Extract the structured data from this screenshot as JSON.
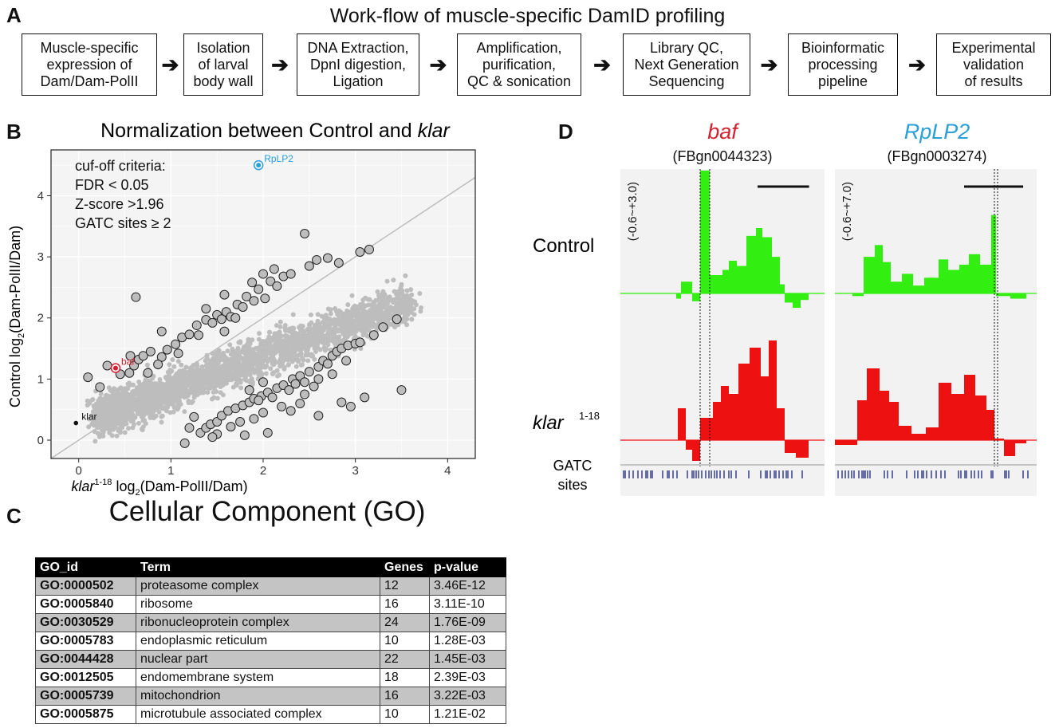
{
  "panels": {
    "a": "A",
    "b": "B",
    "c": "C",
    "d": "D"
  },
  "workflow": {
    "title": "Work-flow of muscle-specific DamID profiling",
    "arrow": "➔",
    "steps": [
      "Muscle-specific\nexpression of\nDam/Dam-PolII",
      "Isolation\nof larval\nbody wall",
      "DNA Extraction,\nDpnI digestion,\nLigation",
      "Amplification,\npurification,\nQC & sonication",
      "Library QC,\nNext Generation\nSequencing",
      "Bioinformatic\nprocessing\npipeline",
      "Experimental\nvalidation\nof results"
    ]
  },
  "scatter": {
    "title_plain": "Normalization between Control and ",
    "title_italic": "klar",
    "criteria": [
      "cuf-off criteria:",
      "FDR < 0.05",
      "Z-score >1.96",
      "GATC sites ≥ 2"
    ],
    "ylabel": {
      "prefix": "Control log",
      "sub": "2",
      "suffix": "(Dam-PolII/Dam)"
    },
    "xlabel": {
      "italic": "klar",
      "sup": "1-18",
      "mid": " log",
      "sub": "2",
      "suffix": "(Dam-PolII/Dam)"
    },
    "colors": {
      "background_points": "#bdbdbd",
      "baf": "#d42030",
      "RpLP2": "#2a9fd8",
      "klar": "#111111",
      "panel": "#f4f4f4",
      "grid": "#ffffff"
    }
  },
  "chart_data": {
    "type": "scatter",
    "xlim": [
      -0.3,
      4.3
    ],
    "ylim": [
      -0.3,
      4.75
    ],
    "xticks": [
      "0",
      "1",
      "2",
      "3",
      "4"
    ],
    "yticks": [
      "0",
      "1",
      "2",
      "3",
      "4"
    ],
    "grid": true,
    "diagonal_line": {
      "x": [
        -0.3,
        4.3
      ],
      "y": [
        -0.3,
        4.3
      ]
    },
    "labeled_points": [
      {
        "label": "RpLP2",
        "x": 1.95,
        "y": 4.5
      },
      {
        "label": "baf",
        "x": 0.4,
        "y": 1.18
      },
      {
        "label": "klar",
        "x": -0.03,
        "y": 0.28
      }
    ],
    "significant_points": [
      {
        "x": 0.1,
        "y": 1.03
      },
      {
        "x": 0.23,
        "y": 0.87
      },
      {
        "x": 0.31,
        "y": 1.22
      },
      {
        "x": 0.45,
        "y": 1.08
      },
      {
        "x": 0.55,
        "y": 1.1
      },
      {
        "x": 0.6,
        "y": 1.22
      },
      {
        "x": 0.65,
        "y": 1.32
      },
      {
        "x": 0.7,
        "y": 1.38
      },
      {
        "x": 0.62,
        "y": 2.34
      },
      {
        "x": 0.75,
        "y": 1.1
      },
      {
        "x": 0.78,
        "y": 1.45
      },
      {
        "x": 0.9,
        "y": 1.78
      },
      {
        "x": 0.9,
        "y": 1.36
      },
      {
        "x": 0.96,
        "y": 1.48
      },
      {
        "x": 1.05,
        "y": 1.57
      },
      {
        "x": 1.12,
        "y": 1.68
      },
      {
        "x": 1.2,
        "y": 1.73
      },
      {
        "x": 1.28,
        "y": 1.88
      },
      {
        "x": 1.3,
        "y": 1.72
      },
      {
        "x": 1.38,
        "y": 1.97
      },
      {
        "x": 1.45,
        "y": 1.92
      },
      {
        "x": 1.5,
        "y": 2.05
      },
      {
        "x": 1.55,
        "y": 1.98
      },
      {
        "x": 1.6,
        "y": 2.1
      },
      {
        "x": 1.65,
        "y": 2.02
      },
      {
        "x": 1.72,
        "y": 2.22
      },
      {
        "x": 1.78,
        "y": 2.18
      },
      {
        "x": 1.82,
        "y": 2.35
      },
      {
        "x": 1.88,
        "y": 2.58
      },
      {
        "x": 1.9,
        "y": 2.28
      },
      {
        "x": 1.95,
        "y": 2.47
      },
      {
        "x": 2.02,
        "y": 2.32
      },
      {
        "x": 2.08,
        "y": 2.6
      },
      {
        "x": 2.15,
        "y": 2.52
      },
      {
        "x": 2.22,
        "y": 2.68
      },
      {
        "x": 2.3,
        "y": 2.72
      },
      {
        "x": 2.45,
        "y": 3.38
      },
      {
        "x": 2.5,
        "y": 2.85
      },
      {
        "x": 2.58,
        "y": 2.95
      },
      {
        "x": 2.7,
        "y": 2.98
      },
      {
        "x": 2.82,
        "y": 2.9
      },
      {
        "x": 3.05,
        "y": 3.08
      },
      {
        "x": 3.15,
        "y": 3.12
      },
      {
        "x": 1.7,
        "y": 2.0
      },
      {
        "x": 1.58,
        "y": 2.38
      },
      {
        "x": 2.0,
        "y": 2.72
      },
      {
        "x": 2.12,
        "y": 2.8
      },
      {
        "x": 1.38,
        "y": 2.15
      },
      {
        "x": 1.08,
        "y": 1.42
      },
      {
        "x": 0.86,
        "y": 1.24
      },
      {
        "x": 0.56,
        "y": 1.38
      },
      {
        "x": 1.58,
        "y": 1.78
      },
      {
        "x": 1.32,
        "y": 0.12
      },
      {
        "x": 1.38,
        "y": 0.2
      },
      {
        "x": 1.43,
        "y": 0.26
      },
      {
        "x": 1.5,
        "y": 0.3
      },
      {
        "x": 1.55,
        "y": 0.4
      },
      {
        "x": 1.62,
        "y": 0.48
      },
      {
        "x": 1.7,
        "y": 0.52
      },
      {
        "x": 1.78,
        "y": 0.57
      },
      {
        "x": 1.85,
        "y": 0.62
      },
      {
        "x": 1.9,
        "y": 0.68
      },
      {
        "x": 1.98,
        "y": 0.72
      },
      {
        "x": 2.05,
        "y": 0.78
      },
      {
        "x": 2.1,
        "y": 0.7
      },
      {
        "x": 2.15,
        "y": 0.85
      },
      {
        "x": 2.22,
        "y": 0.9
      },
      {
        "x": 2.28,
        "y": 0.82
      },
      {
        "x": 2.32,
        "y": 1.0
      },
      {
        "x": 2.4,
        "y": 1.05
      },
      {
        "x": 2.45,
        "y": 0.95
      },
      {
        "x": 2.5,
        "y": 1.12
      },
      {
        "x": 2.55,
        "y": 0.88
      },
      {
        "x": 2.6,
        "y": 1.2
      },
      {
        "x": 2.65,
        "y": 1.3
      },
      {
        "x": 2.7,
        "y": 1.25
      },
      {
        "x": 2.75,
        "y": 1.38
      },
      {
        "x": 2.8,
        "y": 1.45
      },
      {
        "x": 2.85,
        "y": 1.5
      },
      {
        "x": 2.92,
        "y": 1.55
      },
      {
        "x": 3.0,
        "y": 1.58
      },
      {
        "x": 3.05,
        "y": 1.6
      },
      {
        "x": 3.3,
        "y": 1.85
      },
      {
        "x": 3.45,
        "y": 1.98
      },
      {
        "x": 3.5,
        "y": 0.82
      },
      {
        "x": 3.1,
        "y": 0.7
      },
      {
        "x": 2.85,
        "y": 0.62
      },
      {
        "x": 2.95,
        "y": 0.55
      },
      {
        "x": 2.6,
        "y": 0.4
      },
      {
        "x": 2.3,
        "y": 0.48
      },
      {
        "x": 2.2,
        "y": 0.55
      },
      {
        "x": 2.4,
        "y": 0.6
      },
      {
        "x": 2.0,
        "y": 0.45
      },
      {
        "x": 1.9,
        "y": 0.35
      },
      {
        "x": 1.75,
        "y": 0.3
      },
      {
        "x": 1.65,
        "y": 0.22
      },
      {
        "x": 1.5,
        "y": 0.1
      },
      {
        "x": 1.45,
        "y": 0.05
      },
      {
        "x": 1.15,
        "y": -0.05
      },
      {
        "x": 1.2,
        "y": 0.2
      },
      {
        "x": 1.8,
        "y": 0.08
      },
      {
        "x": 2.05,
        "y": 0.12
      },
      {
        "x": 2.6,
        "y": 1.0
      },
      {
        "x": 2.75,
        "y": 1.08
      },
      {
        "x": 2.9,
        "y": 1.3
      },
      {
        "x": 2.45,
        "y": 0.75
      },
      {
        "x": 2.35,
        "y": 0.92
      },
      {
        "x": 1.95,
        "y": 0.65
      },
      {
        "x": 2.0,
        "y": 0.95
      },
      {
        "x": 1.85,
        "y": 0.82
      },
      {
        "x": 3.2,
        "y": 1.72
      },
      {
        "x": 1.25,
        "y": 0.38
      }
    ],
    "background_points": "dense cloud along the diagonal (generated)"
  },
  "tracks": {
    "genes": [
      {
        "name": "baf",
        "id": "(FBgn0044323)",
        "range": "(-0.6~+3.0)",
        "color": "#d42030"
      },
      {
        "name": "RpLP2",
        "id": "(FBgn0003274)",
        "range": "(-0.6~+7.0)",
        "color": "#2a9fd8"
      }
    ],
    "row_labels": {
      "control": "Control",
      "klar": "klar",
      "klar_sup": "1-18",
      "gatc_line1": "GATC",
      "gatc_line2": "sites"
    },
    "colors": {
      "control": "#33ee11",
      "klar": "#ee1111",
      "gatc": "#1a237e",
      "panel": "#f2f2f2"
    }
  },
  "go": {
    "title": "Cellular Component (GO)",
    "headers": [
      "GO_id",
      "Term",
      "Genes",
      "p-value"
    ],
    "rows": [
      [
        "GO:0000502",
        "proteasome complex",
        "12",
        "3.46E-12"
      ],
      [
        "GO:0005840",
        "ribosome",
        "16",
        "3.11E-10"
      ],
      [
        "GO:0030529",
        "ribonucleoprotein complex",
        "24",
        "1.76E-09"
      ],
      [
        "GO:0005783",
        "endoplasmic reticulum",
        "10",
        "1.28E-03"
      ],
      [
        "GO:0044428",
        "nuclear part",
        "22",
        "1.45E-03"
      ],
      [
        "GO:0012505",
        "endomembrane system",
        "18",
        "2.39E-03"
      ],
      [
        "GO:0005739",
        "mitochondrion",
        "16",
        "3.22E-03"
      ],
      [
        "GO:0005875",
        "microtubule associated complex",
        "10",
        "1.21E-02"
      ]
    ]
  }
}
